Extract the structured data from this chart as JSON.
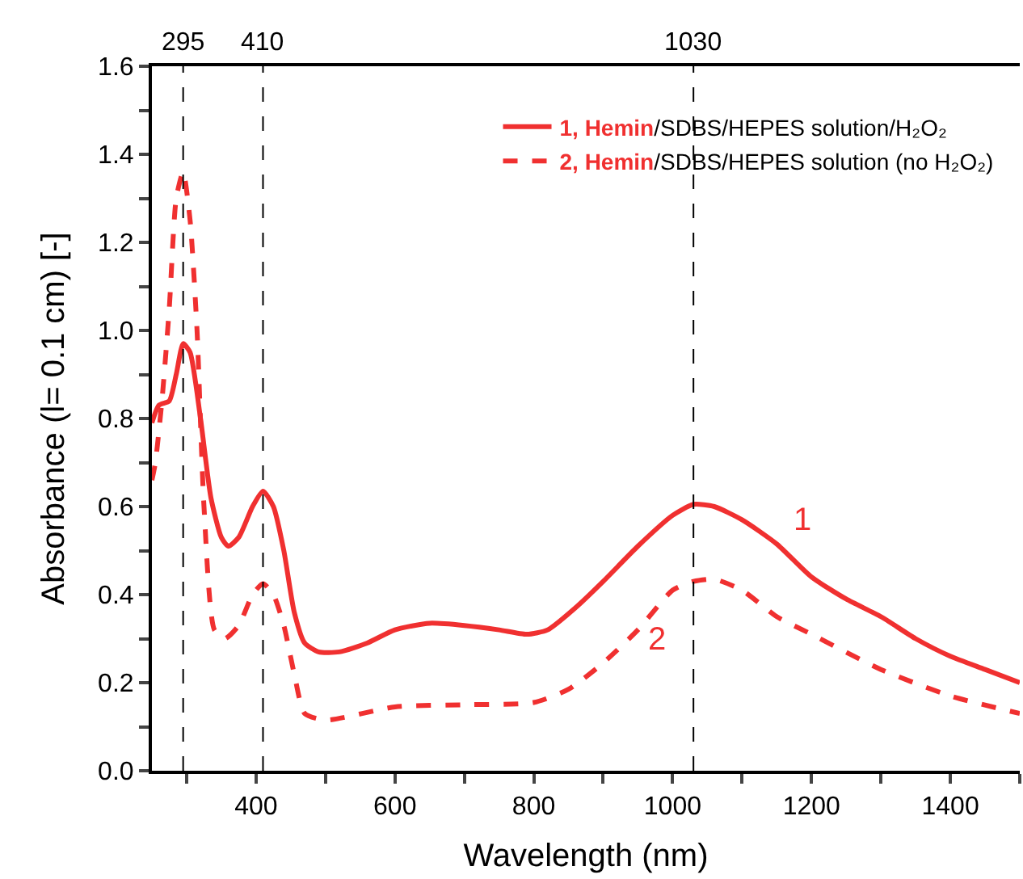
{
  "chart_data": {
    "type": "line",
    "xlabel": "Wavelength (nm)",
    "ylabel": "Absorbance (l= 0.1 cm) [-]",
    "xlim": [
      250,
      1500
    ],
    "ylim": [
      0,
      1.6
    ],
    "xticks": [
      {
        "value": 300,
        "label": null
      },
      400,
      {
        "value": 500,
        "label": null
      },
      600,
      {
        "value": 700,
        "label": null
      },
      800,
      {
        "value": 900,
        "label": null
      },
      1000,
      {
        "value": 1100,
        "label": null
      },
      1200,
      {
        "value": 1300,
        "label": null
      },
      1400,
      {
        "value": 1500,
        "label": null
      }
    ],
    "yticks": [
      {
        "value": 0,
        "label": "0.0"
      },
      {
        "value": 0.1,
        "label": null
      },
      {
        "value": 0.2,
        "label": "0.2"
      },
      {
        "value": 0.3,
        "label": null
      },
      {
        "value": 0.4,
        "label": "0.4"
      },
      {
        "value": 0.5,
        "label": null
      },
      {
        "value": 0.6,
        "label": "0.6"
      },
      {
        "value": 0.7,
        "label": null
      },
      {
        "value": 0.8,
        "label": "0.8"
      },
      {
        "value": 0.9,
        "label": null
      },
      {
        "value": 1.0,
        "label": "1.0"
      },
      {
        "value": 1.1,
        "label": null
      },
      {
        "value": 1.2,
        "label": "1.2"
      },
      {
        "value": 1.3,
        "label": null
      },
      {
        "value": 1.4,
        "label": "1.4"
      },
      {
        "value": 1.5,
        "label": null
      },
      {
        "value": 1.6,
        "label": "1.6"
      }
    ],
    "legend": "top right",
    "series": [
      {
        "name": "1, Hemin/SDBS/HEPES solution/H₂O₂",
        "color": "#f03030",
        "line_style": "solid",
        "x": [
          250,
          260,
          275,
          285,
          295,
          305,
          320,
          335,
          350,
          360,
          375,
          395,
          410,
          425,
          440,
          455,
          470,
          490,
          520,
          560,
          600,
          650,
          700,
          750,
          790,
          820,
          860,
          900,
          950,
          1000,
          1030,
          1060,
          1100,
          1150,
          1200,
          1250,
          1300,
          1350,
          1400,
          1450,
          1500
        ],
        "values": [
          0.79,
          0.83,
          0.84,
          0.9,
          0.97,
          0.95,
          0.8,
          0.62,
          0.53,
          0.51,
          0.53,
          0.6,
          0.635,
          0.6,
          0.5,
          0.36,
          0.29,
          0.27,
          0.27,
          0.29,
          0.32,
          0.335,
          0.33,
          0.32,
          0.31,
          0.32,
          0.37,
          0.43,
          0.51,
          0.58,
          0.605,
          0.6,
          0.57,
          0.515,
          0.44,
          0.39,
          0.35,
          0.3,
          0.26,
          0.23,
          0.2
        ]
      },
      {
        "name": "2, Hemin/SDBS/HEPES solution (no H₂O₂)",
        "color": "#f03030",
        "line_style": "dashed",
        "x": [
          250,
          255,
          265,
          275,
          285,
          295,
          305,
          315,
          325,
          340,
          355,
          375,
          395,
          410,
          425,
          440,
          455,
          470,
          500,
          600,
          700,
          800,
          850,
          900,
          950,
          1000,
          1030,
          1060,
          1100,
          1150,
          1200,
          1300,
          1400,
          1500
        ],
        "values": [
          0.66,
          0.7,
          0.85,
          1.05,
          1.3,
          1.36,
          1.25,
          1.0,
          0.6,
          0.32,
          0.3,
          0.33,
          0.4,
          0.425,
          0.4,
          0.33,
          0.22,
          0.13,
          0.115,
          0.145,
          0.15,
          0.155,
          0.185,
          0.245,
          0.32,
          0.41,
          0.43,
          0.435,
          0.41,
          0.35,
          0.31,
          0.23,
          0.17,
          0.13
        ]
      }
    ],
    "ref_lines": [
      {
        "axis": "x",
        "value": 295,
        "label": "295",
        "color": "#000000",
        "line_style": "dashed"
      },
      {
        "axis": "x",
        "value": 410,
        "label": "410",
        "color": "#000000",
        "line_style": "dashed"
      },
      {
        "axis": "x",
        "value": 1030,
        "label": "1030",
        "color": "#000000",
        "line_style": "dashed"
      }
    ],
    "annotations": [
      "1",
      "2"
    ]
  }
}
